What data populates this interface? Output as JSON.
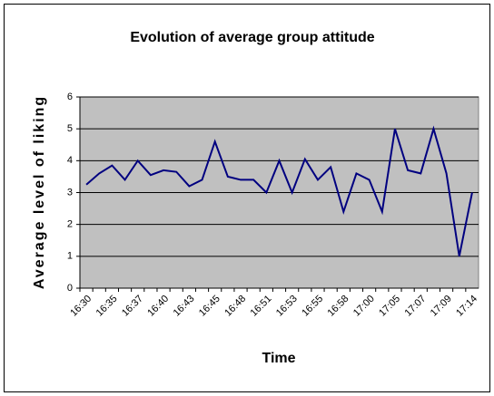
{
  "chart_data": {
    "type": "line",
    "title": "Evolution of average group attitude",
    "x_label": "Time",
    "y_label": "Average level of liking",
    "categories": [
      "16:30",
      null,
      "16:35",
      null,
      "16:37",
      null,
      "16:40",
      null,
      "16:43",
      null,
      "16:45",
      null,
      "16:48",
      null,
      "16:51",
      null,
      "16:53",
      null,
      "16:55",
      null,
      "16:58",
      null,
      "17:00",
      null,
      "17:05",
      null,
      "17:07",
      null,
      "17:09",
      null,
      "17:14"
    ],
    "series": [
      {
        "name": "Average level of liking",
        "color": "#000080",
        "values": [
          3.25,
          3.6,
          3.85,
          3.4,
          4.0,
          3.55,
          3.7,
          3.65,
          3.2,
          3.4,
          4.6,
          3.5,
          3.4,
          3.4,
          3.0,
          4.0,
          3.0,
          4.05,
          3.4,
          3.8,
          2.4,
          3.6,
          3.4,
          2.4,
          5.0,
          3.7,
          3.6,
          5.0,
          3.6,
          1.0,
          3.0
        ]
      }
    ],
    "ylim": [
      0,
      6
    ],
    "yticks": [
      0,
      1,
      2,
      3,
      4,
      5,
      6
    ],
    "grid": true,
    "plot_background": "#c0c0c0"
  }
}
